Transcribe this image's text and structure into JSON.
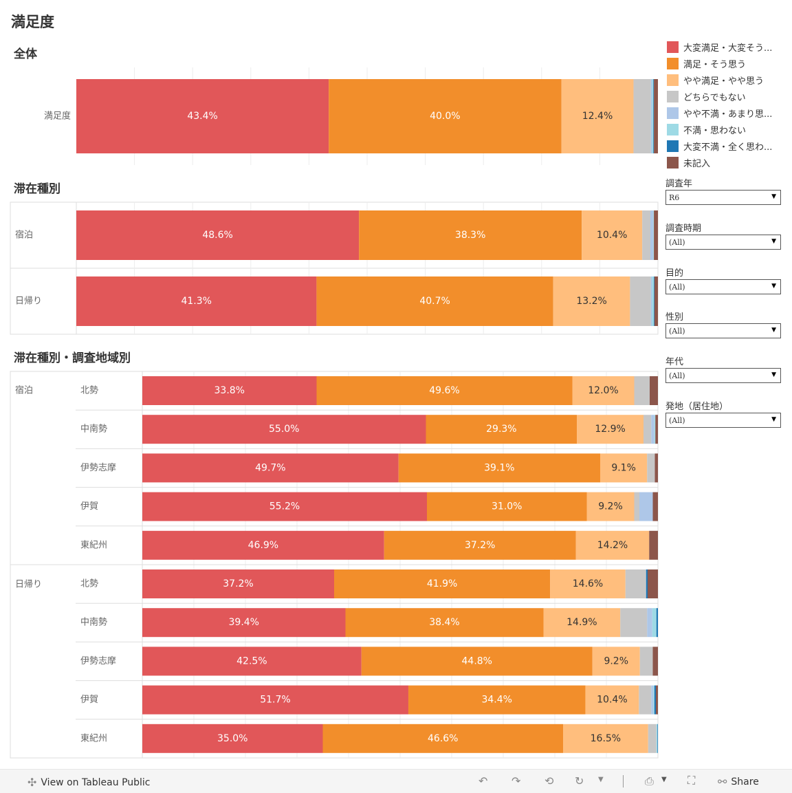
{
  "page": {
    "title": "満足度"
  },
  "sections": {
    "overall": "全体",
    "stay": "滞在種別",
    "stay_region": "滞在種別・調査地域別"
  },
  "colors": {
    "very_satisfied": "#e15759",
    "satisfied": "#f28e2b",
    "somewhat_satisfied": "#ffbe7d",
    "neutral": "#c7c7c7",
    "somewhat_dissatisfied": "#aec7e8",
    "dissatisfied": "#9edae5",
    "very_dissatisfied": "#1f77b4",
    "unanswered": "#8c564b"
  },
  "legend": [
    {
      "label": "大変満足・大変そう...",
      "color": "#e15759"
    },
    {
      "label": "満足・そう思う",
      "color": "#f28e2b"
    },
    {
      "label": "やや満足・やや思う",
      "color": "#ffbe7d"
    },
    {
      "label": "どちらでもない",
      "color": "#c7c7c7"
    },
    {
      "label": "やや不満・あまり思...",
      "color": "#aec7e8"
    },
    {
      "label": "不満・思わない",
      "color": "#9edae5"
    },
    {
      "label": "大変不満・全く思わ...",
      "color": "#1f77b4"
    },
    {
      "label": "未記入",
      "color": "#8c564b"
    }
  ],
  "filters": [
    {
      "label": "調査年",
      "value": "R6"
    },
    {
      "label": "調査時期",
      "value": "(All)"
    },
    {
      "label": "目的",
      "value": "(All)"
    },
    {
      "label": "性別",
      "value": "(All)"
    },
    {
      "label": "年代",
      "value": "(All)"
    },
    {
      "label": "発地（居住地）",
      "value": "(All)"
    }
  ],
  "footer": {
    "view_label": "View on Tableau Public",
    "share_label": "Share"
  },
  "chart_data": [
    {
      "type": "bar",
      "orientation": "horizontal-stacked-100",
      "title": "全体",
      "categories": [
        "満足度"
      ],
      "series": [
        {
          "name": "大変満足・大変そう...",
          "values": [
            43.4
          ]
        },
        {
          "name": "満足・そう思う",
          "values": [
            40.0
          ]
        },
        {
          "name": "やや満足・やや思う",
          "values": [
            12.4
          ]
        },
        {
          "name": "どちらでもない",
          "values": [
            3.0
          ]
        },
        {
          "name": "やや不満・あまり思...",
          "values": [
            0.2
          ]
        },
        {
          "name": "不満・思わない",
          "values": [
            0.2
          ]
        },
        {
          "name": "大変不満・全く思わ...",
          "values": [
            0.1
          ]
        },
        {
          "name": "未記入",
          "values": [
            0.7
          ]
        }
      ]
    },
    {
      "type": "bar",
      "orientation": "horizontal-stacked-100",
      "title": "滞在種別",
      "categories": [
        "宿泊",
        "日帰り"
      ],
      "series": [
        {
          "name": "大変満足・大変そう...",
          "values": [
            48.6,
            41.3
          ]
        },
        {
          "name": "満足・そう思う",
          "values": [
            38.3,
            40.7
          ]
        },
        {
          "name": "やや満足・やや思う",
          "values": [
            10.4,
            13.2
          ]
        },
        {
          "name": "どちらでもない",
          "values": [
            1.4,
            3.6
          ]
        },
        {
          "name": "やや不満・あまり思...",
          "values": [
            0.5,
            0.2
          ]
        },
        {
          "name": "不満・思わない",
          "values": [
            0.1,
            0.3
          ]
        },
        {
          "name": "大変不満・全く思わ...",
          "values": [
            0.0,
            0.1
          ]
        },
        {
          "name": "未記入",
          "values": [
            0.7,
            0.6
          ]
        }
      ]
    },
    {
      "type": "bar",
      "orientation": "horizontal-stacked-100",
      "title": "滞在種別・調査地域別",
      "groups": [
        "宿泊",
        "日帰り"
      ],
      "categories": [
        [
          "宿泊",
          "北勢"
        ],
        [
          "宿泊",
          "中南勢"
        ],
        [
          "宿泊",
          "伊勢志摩"
        ],
        [
          "宿泊",
          "伊賀"
        ],
        [
          "宿泊",
          "東紀州"
        ],
        [
          "日帰り",
          "北勢"
        ],
        [
          "日帰り",
          "中南勢"
        ],
        [
          "日帰り",
          "伊勢志摩"
        ],
        [
          "日帰り",
          "伊賀"
        ],
        [
          "日帰り",
          "東紀州"
        ]
      ],
      "series": [
        {
          "name": "大変満足・大変そう...",
          "values": [
            33.8,
            55.0,
            49.7,
            55.2,
            46.9,
            37.2,
            39.4,
            42.5,
            51.7,
            35.0
          ]
        },
        {
          "name": "満足・そう思う",
          "values": [
            49.6,
            29.3,
            39.1,
            31.0,
            37.2,
            41.9,
            38.4,
            44.8,
            34.4,
            46.6
          ]
        },
        {
          "name": "やや満足・やや思う",
          "values": [
            12.0,
            12.9,
            9.1,
            9.2,
            14.2,
            14.6,
            14.9,
            9.2,
            10.4,
            16.5
          ]
        },
        {
          "name": "どちらでもない",
          "values": [
            3.0,
            1.5,
            1.5,
            1.0,
            0.0,
            4.0,
            5.2,
            2.5,
            2.4,
            1.6
          ]
        },
        {
          "name": "やや不満・あまり思...",
          "values": [
            0.0,
            0.6,
            0.0,
            2.6,
            0.0,
            0.0,
            1.0,
            0.0,
            0.4,
            0.0
          ]
        },
        {
          "name": "不満・思わない",
          "values": [
            0.0,
            0.2,
            0.0,
            0.0,
            0.0,
            0.0,
            0.8,
            0.0,
            0.2,
            0.2
          ]
        },
        {
          "name": "大変不満・全く思わ...",
          "values": [
            0.0,
            0.0,
            0.0,
            0.0,
            0.0,
            0.3,
            0.3,
            0.0,
            0.3,
            0.1
          ]
        },
        {
          "name": "未記入",
          "values": [
            1.6,
            0.5,
            0.6,
            1.0,
            1.7,
            2.0,
            0.0,
            1.0,
            0.4,
            0.0
          ]
        }
      ],
      "xlim": [
        0,
        100
      ]
    }
  ]
}
